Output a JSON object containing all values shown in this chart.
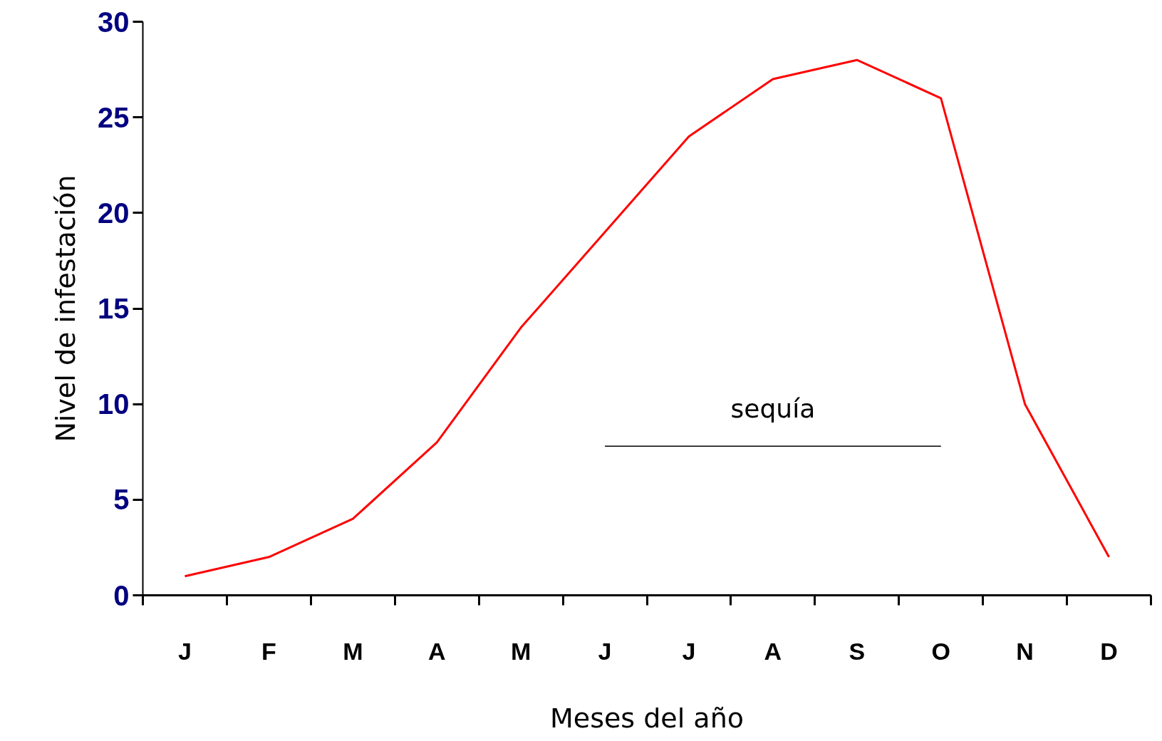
{
  "chart_data": {
    "type": "line",
    "xlabel": "Meses del año",
    "ylabel": "Nivel de infestación",
    "categories": [
      "J",
      "F",
      "M",
      "A",
      "M",
      "J",
      "J",
      "A",
      "S",
      "O",
      "N",
      "D"
    ],
    "series": [
      {
        "color": "#ff0000",
        "values": [
          1,
          2,
          4,
          8,
          14,
          19,
          24,
          27,
          28,
          26,
          10,
          2
        ]
      },
      {
        "type": "line",
        "color": "#000000",
        "values": [
          null,
          null,
          null,
          null,
          null,
          7.8,
          7.8,
          7.8,
          7.8,
          7.8,
          null,
          null
        ]
      }
    ],
    "annotations": [
      "sequía"
    ],
    "ylim": [
      0,
      30
    ],
    "yticks": [
      0,
      5,
      10,
      15,
      20,
      25,
      30
    ],
    "grid": false
  }
}
